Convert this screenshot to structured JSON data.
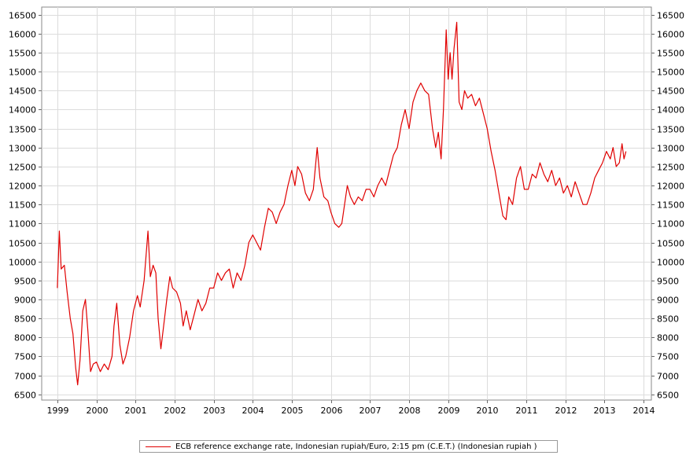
{
  "chart_data": {
    "type": "line",
    "title": "",
    "xlabel": "",
    "ylabel": "",
    "xlim": [
      1998.6,
      2014.2
    ],
    "ylim": [
      6350,
      16700
    ],
    "y_ticks": [
      6500,
      7000,
      7500,
      8000,
      8500,
      9000,
      9500,
      10000,
      10500,
      11000,
      11500,
      12000,
      12500,
      13000,
      13500,
      14000,
      14500,
      15000,
      15500,
      16000,
      16500
    ],
    "y_tick_labels": [
      "6500",
      "7000",
      "7500",
      "8000",
      "8500",
      "9000",
      "9500",
      "10000",
      "10500",
      "11000",
      "11500",
      "12000",
      "12500",
      "13000",
      "13500",
      "14000",
      "14500",
      "15000",
      "15500",
      "16000",
      "16500"
    ],
    "x_ticks": [
      1999,
      2000,
      2001,
      2002,
      2003,
      2004,
      2005,
      2006,
      2007,
      2008,
      2009,
      2010,
      2011,
      2012,
      2013,
      2014
    ],
    "x_tick_labels": [
      "1999",
      "2000",
      "2001",
      "2002",
      "2003",
      "2004",
      "2005",
      "2006",
      "2007",
      "2008",
      "2009",
      "2010",
      "2011",
      "2012",
      "2013",
      "2014"
    ],
    "grid": true,
    "legend_position": "bottom-center",
    "series": [
      {
        "name": "ECB reference exchange rate, Indonesian rupiah/Euro, 2:15 pm (C.E.T.) (Indonesian rupiah )",
        "color": "#e00000",
        "points": [
          [
            1999.0,
            9300
          ],
          [
            1999.05,
            10800
          ],
          [
            1999.1,
            9800
          ],
          [
            1999.18,
            9900
          ],
          [
            1999.25,
            9200
          ],
          [
            1999.33,
            8500
          ],
          [
            1999.4,
            8100
          ],
          [
            1999.47,
            7200
          ],
          [
            1999.52,
            6750
          ],
          [
            1999.58,
            7400
          ],
          [
            1999.65,
            8700
          ],
          [
            1999.72,
            9000
          ],
          [
            1999.78,
            8200
          ],
          [
            1999.85,
            7100
          ],
          [
            1999.92,
            7300
          ],
          [
            2000.0,
            7350
          ],
          [
            2000.1,
            7100
          ],
          [
            2000.2,
            7300
          ],
          [
            2000.3,
            7150
          ],
          [
            2000.4,
            7500
          ],
          [
            2000.45,
            8300
          ],
          [
            2000.52,
            8900
          ],
          [
            2000.6,
            7800
          ],
          [
            2000.68,
            7300
          ],
          [
            2000.75,
            7500
          ],
          [
            2000.85,
            8000
          ],
          [
            2000.95,
            8700
          ],
          [
            2001.05,
            9100
          ],
          [
            2001.12,
            8800
          ],
          [
            2001.22,
            9500
          ],
          [
            2001.32,
            10800
          ],
          [
            2001.38,
            9600
          ],
          [
            2001.45,
            9900
          ],
          [
            2001.52,
            9700
          ],
          [
            2001.58,
            8500
          ],
          [
            2001.65,
            7700
          ],
          [
            2001.72,
            8300
          ],
          [
            2001.8,
            9000
          ],
          [
            2001.88,
            9600
          ],
          [
            2001.95,
            9300
          ],
          [
            2002.05,
            9200
          ],
          [
            2002.15,
            8900
          ],
          [
            2002.22,
            8300
          ],
          [
            2002.3,
            8700
          ],
          [
            2002.4,
            8200
          ],
          [
            2002.5,
            8600
          ],
          [
            2002.6,
            9000
          ],
          [
            2002.7,
            8700
          ],
          [
            2002.8,
            8900
          ],
          [
            2002.9,
            9300
          ],
          [
            2003.0,
            9300
          ],
          [
            2003.1,
            9700
          ],
          [
            2003.2,
            9500
          ],
          [
            2003.3,
            9700
          ],
          [
            2003.4,
            9800
          ],
          [
            2003.5,
            9300
          ],
          [
            2003.6,
            9700
          ],
          [
            2003.7,
            9500
          ],
          [
            2003.8,
            9900
          ],
          [
            2003.9,
            10500
          ],
          [
            2004.0,
            10700
          ],
          [
            2004.1,
            10500
          ],
          [
            2004.2,
            10300
          ],
          [
            2004.3,
            10900
          ],
          [
            2004.4,
            11400
          ],
          [
            2004.5,
            11300
          ],
          [
            2004.6,
            11000
          ],
          [
            2004.7,
            11300
          ],
          [
            2004.8,
            11500
          ],
          [
            2004.9,
            12000
          ],
          [
            2005.0,
            12400
          ],
          [
            2005.08,
            12000
          ],
          [
            2005.15,
            12500
          ],
          [
            2005.25,
            12300
          ],
          [
            2005.35,
            11800
          ],
          [
            2005.45,
            11600
          ],
          [
            2005.55,
            11900
          ],
          [
            2005.65,
            13000
          ],
          [
            2005.72,
            12200
          ],
          [
            2005.82,
            11700
          ],
          [
            2005.92,
            11600
          ],
          [
            2006.0,
            11300
          ],
          [
            2006.1,
            11000
          ],
          [
            2006.2,
            10900
          ],
          [
            2006.28,
            11000
          ],
          [
            2006.35,
            11500
          ],
          [
            2006.42,
            12000
          ],
          [
            2006.5,
            11700
          ],
          [
            2006.6,
            11500
          ],
          [
            2006.7,
            11700
          ],
          [
            2006.8,
            11600
          ],
          [
            2006.9,
            11900
          ],
          [
            2007.0,
            11900
          ],
          [
            2007.1,
            11700
          ],
          [
            2007.2,
            12000
          ],
          [
            2007.3,
            12200
          ],
          [
            2007.4,
            12000
          ],
          [
            2007.5,
            12400
          ],
          [
            2007.6,
            12800
          ],
          [
            2007.7,
            13000
          ],
          [
            2007.8,
            13600
          ],
          [
            2007.9,
            14000
          ],
          [
            2008.0,
            13500
          ],
          [
            2008.1,
            14200
          ],
          [
            2008.2,
            14500
          ],
          [
            2008.3,
            14700
          ],
          [
            2008.4,
            14500
          ],
          [
            2008.5,
            14400
          ],
          [
            2008.6,
            13500
          ],
          [
            2008.68,
            13000
          ],
          [
            2008.75,
            13400
          ],
          [
            2008.82,
            12700
          ],
          [
            2008.88,
            14000
          ],
          [
            2008.95,
            16100
          ],
          [
            2009.0,
            14800
          ],
          [
            2009.05,
            15500
          ],
          [
            2009.1,
            14800
          ],
          [
            2009.15,
            15600
          ],
          [
            2009.22,
            16300
          ],
          [
            2009.28,
            14200
          ],
          [
            2009.35,
            14000
          ],
          [
            2009.42,
            14500
          ],
          [
            2009.5,
            14300
          ],
          [
            2009.6,
            14400
          ],
          [
            2009.7,
            14100
          ],
          [
            2009.8,
            14300
          ],
          [
            2009.9,
            13900
          ],
          [
            2010.0,
            13500
          ],
          [
            2010.1,
            12900
          ],
          [
            2010.2,
            12400
          ],
          [
            2010.3,
            11800
          ],
          [
            2010.4,
            11200
          ],
          [
            2010.48,
            11100
          ],
          [
            2010.55,
            11700
          ],
          [
            2010.65,
            11500
          ],
          [
            2010.75,
            12200
          ],
          [
            2010.85,
            12500
          ],
          [
            2010.95,
            11900
          ],
          [
            2011.05,
            11900
          ],
          [
            2011.15,
            12300
          ],
          [
            2011.25,
            12200
          ],
          [
            2011.35,
            12600
          ],
          [
            2011.45,
            12300
          ],
          [
            2011.55,
            12100
          ],
          [
            2011.65,
            12400
          ],
          [
            2011.75,
            12000
          ],
          [
            2011.85,
            12200
          ],
          [
            2011.95,
            11800
          ],
          [
            2012.05,
            12000
          ],
          [
            2012.15,
            11700
          ],
          [
            2012.25,
            12100
          ],
          [
            2012.35,
            11800
          ],
          [
            2012.45,
            11500
          ],
          [
            2012.55,
            11500
          ],
          [
            2012.65,
            11800
          ],
          [
            2012.75,
            12200
          ],
          [
            2012.85,
            12400
          ],
          [
            2012.95,
            12600
          ],
          [
            2013.05,
            12900
          ],
          [
            2013.15,
            12700
          ],
          [
            2013.22,
            13000
          ],
          [
            2013.3,
            12500
          ],
          [
            2013.38,
            12600
          ],
          [
            2013.45,
            13100
          ],
          [
            2013.5,
            12700
          ],
          [
            2013.55,
            12900
          ]
        ]
      }
    ]
  }
}
